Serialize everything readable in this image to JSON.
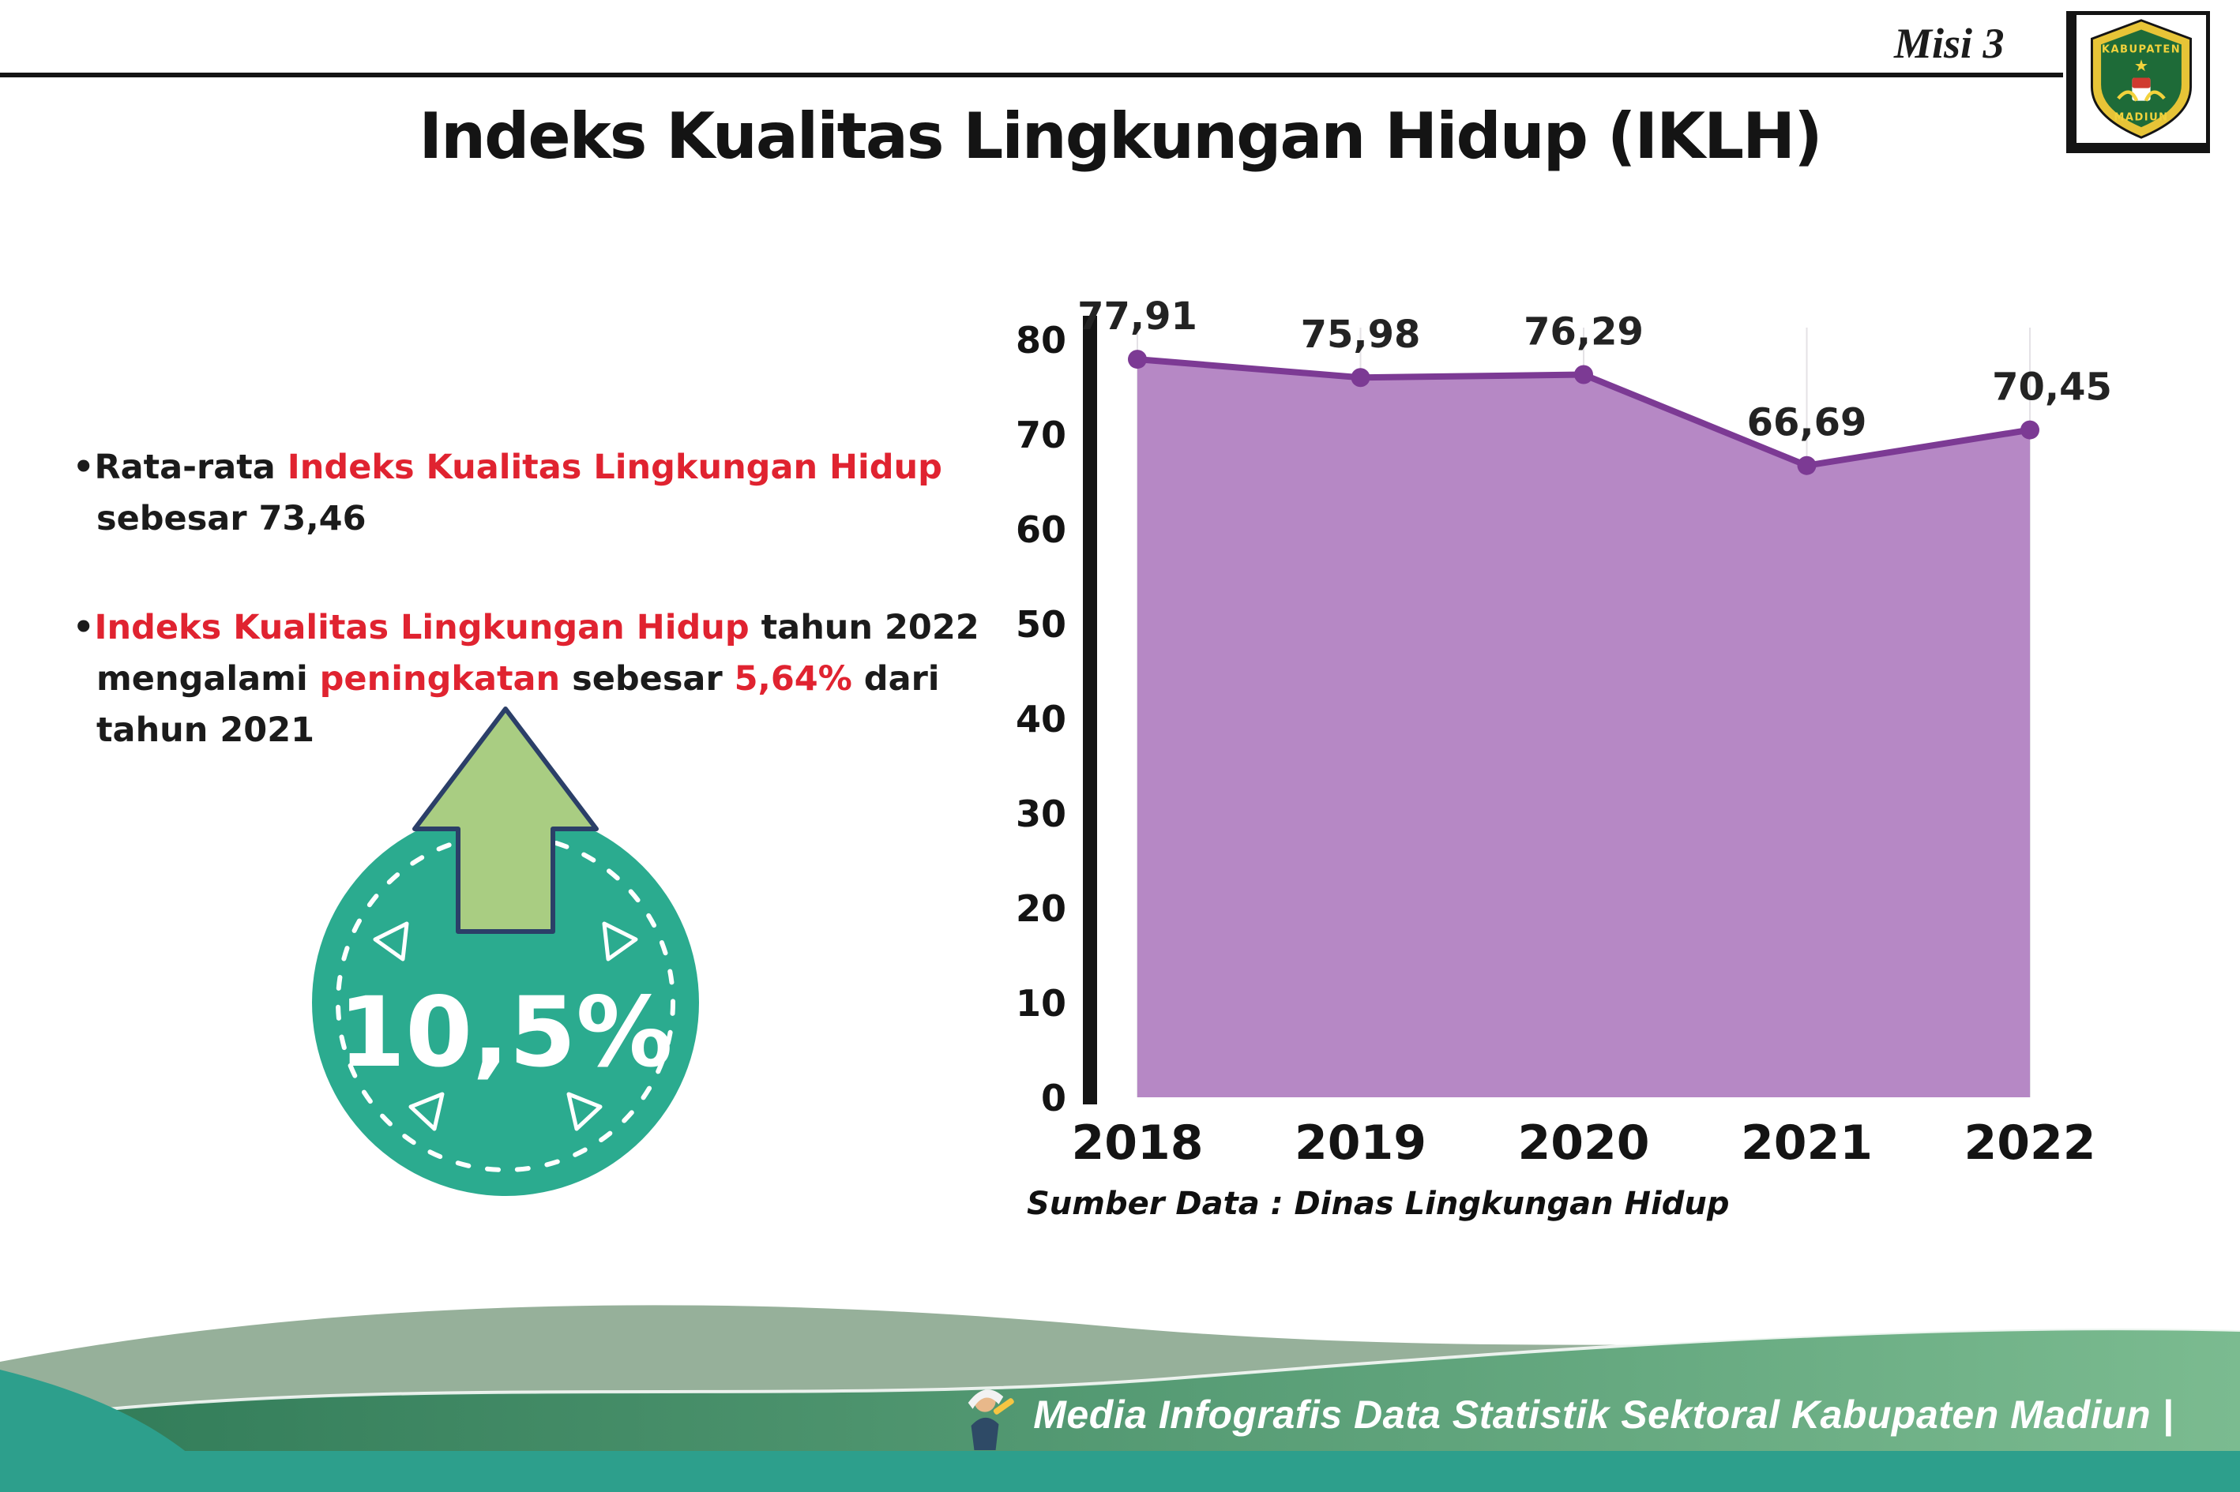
{
  "colors": {
    "accent_red": "#e02330",
    "badge_teal": "#2bab8f",
    "arrow_green": "#a9cd82",
    "chart_area_purple": "#b688c5",
    "chart_line_purple": "#7c3a94",
    "footer_teal": "#2d9f8c",
    "footer_green_dark": "#2f7a57",
    "footer_green_light": "#7bbb90",
    "footer_sage": "#96b09a"
  },
  "header": {
    "misi_label": "Misi 3",
    "title": "Indeks Kualitas Lingkungan Hidup (IKLH)",
    "logo": {
      "top_text": "KABUPATEN",
      "bottom_text": "MADIUN",
      "star": "★"
    }
  },
  "bullets": {
    "marker": "•",
    "b1": {
      "t1": "Rata-rata ",
      "h1": "Indeks Kualitas Lingkungan Hidup",
      "t2": " sebesar 73,46"
    },
    "b2": {
      "h1": "Indeks Kualitas Lingkungan Hidup",
      "t1": " tahun 2022 mengalami ",
      "h2": "peningkatan",
      "t2": " sebesar ",
      "h3": "5,64%",
      "t3": " dari tahun 2021"
    }
  },
  "badge": {
    "value": "10,5%"
  },
  "chart_data": {
    "type": "area",
    "title": "Indeks Kualitas Lingkungan Hidup (IKLH)",
    "categories": [
      "2018",
      "2019",
      "2020",
      "2021",
      "2022"
    ],
    "values": [
      77.91,
      75.98,
      76.29,
      66.69,
      70.45
    ],
    "point_labels": [
      "77,91",
      "75,98",
      "76,29",
      "66,69",
      "70,45"
    ],
    "xlabel": "",
    "ylabel": "",
    "ylim": [
      0,
      80
    ],
    "yticks": [
      0,
      10,
      20,
      30,
      40,
      50,
      60,
      70,
      80
    ],
    "grid": "faint-vertical",
    "legend": "none",
    "area_color": "#b688c5",
    "line_color": "#7c3a94",
    "source": "Sumber Data : Dinas Lingkungan Hidup"
  },
  "footer": {
    "text": "Media Infografis Data Statistik Sektoral Kabupaten Madiun |"
  }
}
